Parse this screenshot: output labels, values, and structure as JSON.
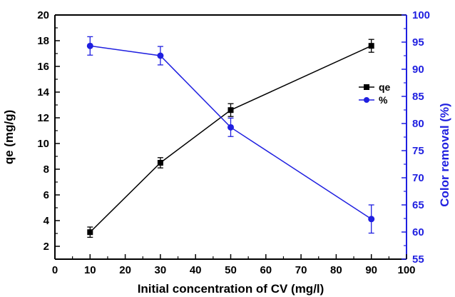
{
  "chart_data": {
    "type": "line",
    "x": [
      10,
      30,
      50,
      90
    ],
    "xlabel": "Initial concentration of CV (mg/l)",
    "xlim": [
      0,
      100
    ],
    "xticks": [
      0,
      10,
      20,
      30,
      40,
      50,
      60,
      70,
      80,
      90,
      100
    ],
    "grid": false,
    "legend_position": "right",
    "series": [
      {
        "name": "qe",
        "axis": "left",
        "values": [
          3.1,
          8.5,
          12.6,
          17.6
        ],
        "errors": [
          0.4,
          0.4,
          0.5,
          0.5
        ],
        "color": "#000000",
        "marker": "square"
      },
      {
        "name": "%",
        "axis": "right",
        "values": [
          94.3,
          92.5,
          79.3,
          62.4
        ],
        "errors": [
          1.7,
          1.7,
          1.7,
          2.6
        ],
        "color": "#1f1fe0",
        "marker": "circle"
      }
    ],
    "left_axis": {
      "label": "qe (mg/g)",
      "ylim": [
        1,
        20
      ],
      "ticks": [
        2,
        4,
        6,
        8,
        10,
        12,
        14,
        16,
        18,
        20
      ],
      "color": "#000000"
    },
    "right_axis": {
      "label": "Color removal (%)",
      "ylim": [
        55,
        100
      ],
      "ticks": [
        55,
        60,
        65,
        70,
        75,
        80,
        85,
        90,
        95,
        100
      ],
      "color": "#1f1fe0"
    }
  }
}
